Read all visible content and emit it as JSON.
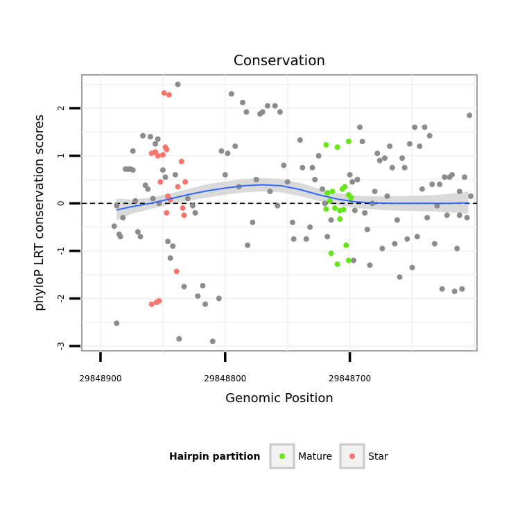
{
  "chart_data": {
    "type": "scatter",
    "title": "Conservation",
    "xlabel": "Genomic Position",
    "ylabel": "phyloP LRT conservation scores",
    "x_reversed": true,
    "xlim": [
      29848915,
      29848598
    ],
    "ylim": [
      -3.1,
      2.7
    ],
    "x_ticks": [
      29848900,
      29848800,
      29848700
    ],
    "x_tick_labels": [
      "29848900",
      "29848800",
      "29848700"
    ],
    "y_ticks": [
      -3,
      -2,
      -1,
      0,
      1,
      2
    ],
    "y_tick_labels": [
      "-3",
      "-2",
      "-1",
      "0",
      "1",
      "2"
    ],
    "grid": true,
    "reference_line": {
      "y": 0,
      "style": "dashed"
    },
    "legend": {
      "title": "Hairpin partition",
      "placement": "bottom",
      "entries": [
        {
          "label": "Mature",
          "color": "#66e619"
        },
        {
          "label": "Star",
          "color": "#f8766d"
        }
      ]
    },
    "colors": {
      "other": "#8c8c8c",
      "mature": "#66e619",
      "star": "#f8766d",
      "smooth": "#3366ff",
      "band": "#d3d3d3"
    },
    "smooth": {
      "x": [
        29848887,
        29848875,
        29848860,
        29848845,
        29848830,
        29848815,
        29848800,
        29848785,
        29848770,
        29848755,
        29848740,
        29848725,
        29848710,
        29848695,
        29848680,
        29848665,
        29848650,
        29848635,
        29848620,
        29848605
      ],
      "y": [
        -0.14,
        -0.07,
        0.0,
        0.09,
        0.18,
        0.26,
        0.32,
        0.37,
        0.39,
        0.37,
        0.29,
        0.18,
        0.09,
        0.03,
        0.01,
        0.0,
        0.0,
        0.0,
        0.0,
        0.01
      ],
      "lower": [
        -0.36,
        -0.22,
        -0.12,
        -0.03,
        0.05,
        0.12,
        0.18,
        0.23,
        0.25,
        0.23,
        0.15,
        0.05,
        -0.04,
        -0.1,
        -0.13,
        -0.15,
        -0.16,
        -0.17,
        -0.19,
        -0.22
      ],
      "upper": [
        0.1,
        0.08,
        0.12,
        0.2,
        0.3,
        0.4,
        0.46,
        0.51,
        0.53,
        0.51,
        0.43,
        0.31,
        0.22,
        0.16,
        0.15,
        0.15,
        0.16,
        0.17,
        0.2,
        0.25
      ]
    },
    "series": [
      {
        "name": "Mature",
        "points": [
          {
            "x": 29848719,
            "y": 1.23
          },
          {
            "x": 29848710,
            "y": 1.18
          },
          {
            "x": 29848701,
            "y": 1.3
          },
          {
            "x": 29848718,
            "y": 0.22
          },
          {
            "x": 29848714,
            "y": 0.25
          },
          {
            "x": 29848706,
            "y": 0.3
          },
          {
            "x": 29848704,
            "y": 0.35
          },
          {
            "x": 29848701,
            "y": 0.18
          },
          {
            "x": 29848699,
            "y": 0.12
          },
          {
            "x": 29848716,
            "y": 0.05
          },
          {
            "x": 29848719,
            "y": -0.12
          },
          {
            "x": 29848712,
            "y": -0.1
          },
          {
            "x": 29848708,
            "y": -0.15
          },
          {
            "x": 29848705,
            "y": -0.13
          },
          {
            "x": 29848708,
            "y": -0.33
          },
          {
            "x": 29848715,
            "y": -1.05
          },
          {
            "x": 29848703,
            "y": -0.88
          },
          {
            "x": 29848710,
            "y": -1.28
          },
          {
            "x": 29848701,
            "y": -1.2
          }
        ]
      },
      {
        "name": "Star",
        "points": [
          {
            "x": 29848849,
            "y": 2.32
          },
          {
            "x": 29848845,
            "y": 2.28
          },
          {
            "x": 29848859,
            "y": 1.05
          },
          {
            "x": 29848856,
            "y": 1.08
          },
          {
            "x": 29848854,
            "y": 1.0
          },
          {
            "x": 29848850,
            "y": 1.02
          },
          {
            "x": 29848848,
            "y": 1.18
          },
          {
            "x": 29848847,
            "y": 1.13
          },
          {
            "x": 29848835,
            "y": 0.88
          },
          {
            "x": 29848852,
            "y": 0.45
          },
          {
            "x": 29848838,
            "y": 0.35
          },
          {
            "x": 29848832,
            "y": 0.45
          },
          {
            "x": 29848846,
            "y": 0.15
          },
          {
            "x": 29848844,
            "y": 0.08
          },
          {
            "x": 29848834,
            "y": -0.1
          },
          {
            "x": 29848847,
            "y": -0.2
          },
          {
            "x": 29848833,
            "y": -0.25
          },
          {
            "x": 29848839,
            "y": -1.43
          },
          {
            "x": 29848855,
            "y": -2.08
          },
          {
            "x": 29848853,
            "y": -2.05
          },
          {
            "x": 29848859,
            "y": -2.12
          }
        ]
      },
      {
        "name": "",
        "points": [
          {
            "x": 29848887,
            "y": -2.52
          },
          {
            "x": 29848887,
            "y": -0.05
          },
          {
            "x": 29848889,
            "y": -0.48
          },
          {
            "x": 29848885,
            "y": -0.65
          },
          {
            "x": 29848884,
            "y": -0.7
          },
          {
            "x": 29848882,
            "y": -0.3
          },
          {
            "x": 29848880,
            "y": 0.72
          },
          {
            "x": 29848878,
            "y": 0.72
          },
          {
            "x": 29848876,
            "y": 0.72
          },
          {
            "x": 29848874,
            "y": 0.7
          },
          {
            "x": 29848874,
            "y": 1.1
          },
          {
            "x": 29848872,
            "y": 0.05
          },
          {
            "x": 29848870,
            "y": -0.6
          },
          {
            "x": 29848868,
            "y": -0.7
          },
          {
            "x": 29848866,
            "y": 1.42
          },
          {
            "x": 29848864,
            "y": 0.38
          },
          {
            "x": 29848862,
            "y": 0.3
          },
          {
            "x": 29848860,
            "y": 1.4
          },
          {
            "x": 29848858,
            "y": 0.1
          },
          {
            "x": 29848856,
            "y": 1.25
          },
          {
            "x": 29848854,
            "y": 1.35
          },
          {
            "x": 29848853,
            "y": 0.0
          },
          {
            "x": 29848850,
            "y": 0.7
          },
          {
            "x": 29848848,
            "y": 0.55
          },
          {
            "x": 29848846,
            "y": -0.8
          },
          {
            "x": 29848844,
            "y": -1.15
          },
          {
            "x": 29848842,
            "y": -0.9
          },
          {
            "x": 29848840,
            "y": 0.6
          },
          {
            "x": 29848838,
            "y": 2.5
          },
          {
            "x": 29848837,
            "y": -2.85
          },
          {
            "x": 29848833,
            "y": -1.75
          },
          {
            "x": 29848830,
            "y": 0.1
          },
          {
            "x": 29848826,
            "y": -0.05
          },
          {
            "x": 29848824,
            "y": -0.2
          },
          {
            "x": 29848822,
            "y": -1.95
          },
          {
            "x": 29848818,
            "y": -1.73
          },
          {
            "x": 29848816,
            "y": -2.12
          },
          {
            "x": 29848810,
            "y": -2.9
          },
          {
            "x": 29848805,
            "y": -2.0
          },
          {
            "x": 29848803,
            "y": 1.1
          },
          {
            "x": 29848800,
            "y": 0.6
          },
          {
            "x": 29848798,
            "y": 1.05
          },
          {
            "x": 29848795,
            "y": 2.3
          },
          {
            "x": 29848792,
            "y": 1.2
          },
          {
            "x": 29848789,
            "y": 0.35
          },
          {
            "x": 29848786,
            "y": 2.12
          },
          {
            "x": 29848783,
            "y": 1.92
          },
          {
            "x": 29848782,
            "y": -0.88
          },
          {
            "x": 29848778,
            "y": -0.4
          },
          {
            "x": 29848775,
            "y": 0.5
          },
          {
            "x": 29848772,
            "y": 1.88
          },
          {
            "x": 29848770,
            "y": 1.92
          },
          {
            "x": 29848766,
            "y": 2.05
          },
          {
            "x": 29848764,
            "y": 0.25
          },
          {
            "x": 29848760,
            "y": 2.05
          },
          {
            "x": 29848758,
            "y": -0.05
          },
          {
            "x": 29848756,
            "y": 1.92
          },
          {
            "x": 29848753,
            "y": 0.8
          },
          {
            "x": 29848750,
            "y": 0.45
          },
          {
            "x": 29848746,
            "y": -0.4
          },
          {
            "x": 29848745,
            "y": -0.75
          },
          {
            "x": 29848740,
            "y": 1.33
          },
          {
            "x": 29848738,
            "y": 0.75
          },
          {
            "x": 29848735,
            "y": -0.75
          },
          {
            "x": 29848732,
            "y": -0.5
          },
          {
            "x": 29848730,
            "y": 0.75
          },
          {
            "x": 29848728,
            "y": 0.5
          },
          {
            "x": 29848725,
            "y": 1.0
          },
          {
            "x": 29848722,
            "y": 0.3
          },
          {
            "x": 29848720,
            "y": 0.0
          },
          {
            "x": 29848718,
            "y": -0.7
          },
          {
            "x": 29848715,
            "y": -0.35
          },
          {
            "x": 29848700,
            "y": 0.6
          },
          {
            "x": 29848698,
            "y": 0.45
          },
          {
            "x": 29848697,
            "y": -1.2
          },
          {
            "x": 29848696,
            "y": -0.15
          },
          {
            "x": 29848694,
            "y": 0.5
          },
          {
            "x": 29848692,
            "y": 1.6
          },
          {
            "x": 29848690,
            "y": 1.3
          },
          {
            "x": 29848688,
            "y": -0.2
          },
          {
            "x": 29848686,
            "y": -0.55
          },
          {
            "x": 29848684,
            "y": -1.3
          },
          {
            "x": 29848682,
            "y": 0.0
          },
          {
            "x": 29848680,
            "y": 0.25
          },
          {
            "x": 29848678,
            "y": 1.05
          },
          {
            "x": 29848676,
            "y": 0.9
          },
          {
            "x": 29848674,
            "y": -0.95
          },
          {
            "x": 29848672,
            "y": 0.95
          },
          {
            "x": 29848670,
            "y": 0.15
          },
          {
            "x": 29848668,
            "y": 1.2
          },
          {
            "x": 29848666,
            "y": 0.75
          },
          {
            "x": 29848664,
            "y": -0.85
          },
          {
            "x": 29848662,
            "y": -0.35
          },
          {
            "x": 29848660,
            "y": -1.55
          },
          {
            "x": 29848658,
            "y": 0.95
          },
          {
            "x": 29848656,
            "y": 0.75
          },
          {
            "x": 29848654,
            "y": -0.75
          },
          {
            "x": 29848652,
            "y": 1.25
          },
          {
            "x": 29848650,
            "y": -1.35
          },
          {
            "x": 29848648,
            "y": 1.6
          },
          {
            "x": 29848646,
            "y": -0.7
          },
          {
            "x": 29848644,
            "y": 1.2
          },
          {
            "x": 29848642,
            "y": 0.3
          },
          {
            "x": 29848640,
            "y": 1.6
          },
          {
            "x": 29848638,
            "y": -0.3
          },
          {
            "x": 29848636,
            "y": 1.42
          },
          {
            "x": 29848634,
            "y": 0.4
          },
          {
            "x": 29848632,
            "y": -0.85
          },
          {
            "x": 29848630,
            "y": -0.05
          },
          {
            "x": 29848628,
            "y": 0.4
          },
          {
            "x": 29848626,
            "y": -1.8
          },
          {
            "x": 29848624,
            "y": 0.55
          },
          {
            "x": 29848622,
            "y": -0.25
          },
          {
            "x": 29848620,
            "y": 0.55
          },
          {
            "x": 29848618,
            "y": 0.6
          },
          {
            "x": 29848616,
            "y": -1.85
          },
          {
            "x": 29848614,
            "y": -0.95
          },
          {
            "x": 29848612,
            "y": 0.25
          },
          {
            "x": 29848610,
            "y": -1.8
          },
          {
            "x": 29848608,
            "y": 0.55
          },
          {
            "x": 29848606,
            "y": -0.3
          },
          {
            "x": 29848604,
            "y": 1.85
          },
          {
            "x": 29848603,
            "y": 0.15
          },
          {
            "x": 29848612,
            "y": -0.25
          }
        ]
      }
    ]
  }
}
